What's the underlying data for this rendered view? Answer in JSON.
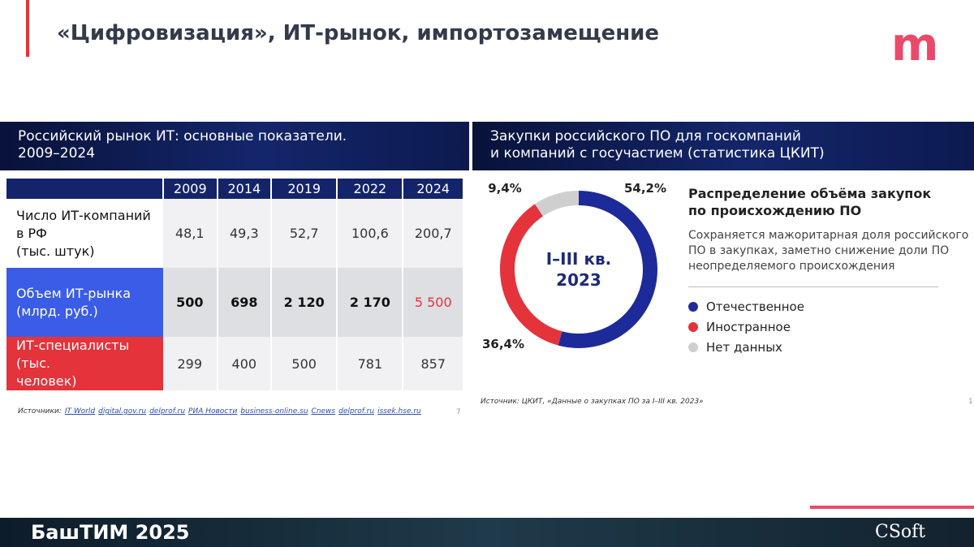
{
  "header": {
    "title": "«Цифровизация», ИТ-рынок, импортозамещение"
  },
  "left_panel": {
    "title_lines": [
      "Российский рынок ИТ: основные показатели.",
      "2009–2024"
    ],
    "table": {
      "columns": [
        "2009",
        "2014",
        "2019",
        "2022",
        "2024"
      ],
      "rows": [
        {
          "label_lines": [
            "Число ИТ-компаний",
            " в РФ",
            "(тыс. штук)"
          ],
          "cells": [
            "48,1",
            "49,3",
            "52,7",
            "100,6",
            "200,7"
          ]
        },
        {
          "label_lines": [
            "Объем ИТ-рынка",
            "(млрд. руб.)"
          ],
          "cells": [
            "500",
            "698",
            "2 120",
            "2 170",
            "5 500"
          ]
        },
        {
          "label_lines": [
            "ИТ-специалисты (тыс.",
            "человек)"
          ],
          "cells": [
            "299",
            "400",
            "500",
            "781",
            "857"
          ]
        }
      ]
    },
    "sources": {
      "label": "Источники:",
      "links": [
        "IT World",
        "digital.gov.ru",
        "delprof.ru",
        "РИА Новости",
        "business-online.su",
        "Cnews",
        "delprof.ru",
        "issek.hse.ru"
      ]
    },
    "page_number": "7"
  },
  "right_panel": {
    "title_lines": [
      "Закупки российского ПО для госкомпаний",
      "и компаний с госучастием (статистика ЦКИТ)"
    ],
    "subtitle_lines": [
      "Распределение объёма закупок",
      "по происхождению ПО"
    ],
    "description_lines": [
      "Сохраняется мажоритарная доля российского",
      "ПО в закупках, заметно снижение доли ПО",
      "неопределяемого происхождения"
    ],
    "source": "Источник: ЦКИТ, «Данные о закупках ПО за I–III кв. 2023»",
    "page_number": "1"
  },
  "chart_data": {
    "type": "pie",
    "categories": [
      "Отечественное",
      "Иностранное",
      "Нет данных"
    ],
    "values": [
      54.2,
      36.4,
      9.4
    ],
    "value_labels": [
      "54,2%",
      "36,4%",
      "9,4%"
    ],
    "colors": [
      "#1d2a9a",
      "#e5333b",
      "#cfcfcf"
    ],
    "center_label_lines": [
      "I–III кв.",
      "2023"
    ]
  },
  "footer": {
    "event": "БашТИМ 2025",
    "brand": "CSoft"
  }
}
